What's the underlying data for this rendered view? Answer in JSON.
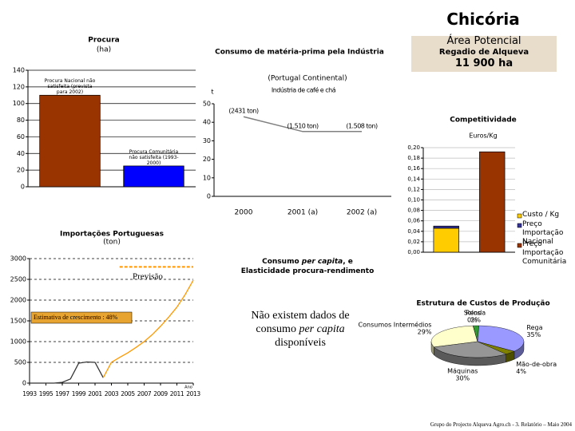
{
  "slide": {
    "title": "Chicória",
    "box": [
      "Área Potencial",
      "Regadio de Alqueva",
      "11 900 ha"
    ],
    "consumo_title": [
      "Consumo",
      "per capita",
      ", e",
      "Elasticidade procura-rendimento"
    ],
    "consumo_text": [
      "Não existem dados de",
      "consumo",
      "per capita",
      "disponíveis"
    ],
    "footer": "Grupo do Projecto Alqueva Agro.ch - 3. Relatório – Maio 2004"
  },
  "chart_data": [
    {
      "type": "bar",
      "title": "Procura",
      "subtitle": "(ha)",
      "categories": [
        "Procura Nacional não satisfeita (prevista para 2002)",
        "Procura Comunitária não satisfeita (1993-2000)"
      ],
      "values": [
        110,
        25
      ],
      "colors": [
        "#993300",
        "#0000ff"
      ],
      "ylim": [
        0,
        140
      ],
      "yticks": [
        0,
        20,
        40,
        60,
        80,
        100,
        120,
        140
      ],
      "grid": true
    },
    {
      "type": "line",
      "title": "Consumo de matéria-prima pela Indústria",
      "subtitle": "(Portugal Continental)",
      "series_label": "Indústria de café e chá",
      "ylabel": "t",
      "categories": [
        "2000",
        "2001 (a)",
        "2002 (a)"
      ],
      "values": [
        43,
        35,
        35
      ],
      "color": "#808080",
      "annotations": [
        "(2431 ton)",
        "(1.510 ton)",
        "(1.508 ton)"
      ],
      "ylim": [
        0,
        50
      ],
      "yticks": [
        0,
        10,
        20,
        30,
        40,
        50
      ],
      "grid": false
    },
    {
      "type": "bar",
      "stacked": true,
      "title": "Competitividade",
      "ylabel": "Euros/Kg",
      "categories": [
        null,
        null
      ],
      "series": [
        {
          "name": "Custo / Kg",
          "color": "#ffcc00",
          "values": [
            0.046,
            null
          ]
        },
        {
          "name": "Preço Importação Nacional",
          "color": "#333399",
          "values": [
            0.004,
            null
          ]
        },
        {
          "name": "Preço Importação Comunitária",
          "color": "#993300",
          "values": [
            null,
            0.192
          ]
        }
      ],
      "ylim": [
        0,
        0.2
      ],
      "yticks": [
        {
          "value": 0,
          "label": "0,00"
        },
        {
          "value": 0.02,
          "label": "0,02"
        },
        {
          "value": 0.04,
          "label": "0,04"
        },
        {
          "value": 0.06,
          "label": "0,06"
        },
        {
          "value": 0.08,
          "label": "0,08"
        },
        {
          "value": 0.1,
          "label": "0,10"
        },
        {
          "value": 0.12,
          "label": "0,12"
        },
        {
          "value": 0.14,
          "label": "0,14"
        },
        {
          "value": 0.16,
          "label": "0,16"
        },
        {
          "value": 0.18,
          "label": "0,18"
        },
        {
          "value": 0.2,
          "label": "0,20"
        }
      ],
      "grid": true,
      "legend": "right"
    },
    {
      "type": "line",
      "title": "Importações Portuguesas",
      "subtitle": "(ton)",
      "x": [
        1993,
        1994,
        1995,
        1996,
        1997,
        1998,
        1999,
        2000,
        2001,
        2002,
        2003,
        2004,
        2005,
        2006,
        2007,
        2008,
        2009,
        2010,
        2011,
        2012,
        2013
      ],
      "series": [
        {
          "color": "#333333",
          "values": [
            0,
            0,
            0,
            0,
            20,
            100,
            480,
            510,
            500,
            130,
            null,
            null,
            null,
            null,
            null,
            null,
            null,
            null,
            null,
            null,
            null
          ]
        },
        {
          "color": "#ff9900",
          "values": [
            null,
            null,
            null,
            null,
            null,
            null,
            null,
            null,
            null,
            130,
            500,
            620,
            730,
            860,
            1000,
            1170,
            1370,
            1590,
            1830,
            2130,
            2480
          ]
        }
      ],
      "reference_line": {
        "y": 2800,
        "x": [
          2004,
          2013
        ]
      },
      "annotations": [
        "Previsão",
        "Estimativa de crescimento : 48%",
        "Ano"
      ],
      "xlim": [
        1993,
        2013
      ],
      "xticks": [
        1993,
        1995,
        1997,
        1999,
        2001,
        2003,
        2005,
        2007,
        2009,
        2011,
        2013
      ],
      "ylim": [
        0,
        3000
      ],
      "yticks": [
        0,
        500,
        1000,
        1500,
        2000,
        2500,
        3000
      ],
      "grid": true
    },
    {
      "type": "pie",
      "title": "Estrutura de Custos de Produção",
      "categories": [
        "Consumos Intermédios",
        "Solos",
        "Renda",
        "Rega",
        "Mão-de-obra",
        "Máquinas"
      ],
      "values": [
        29,
        0,
        2,
        35,
        4,
        30
      ],
      "value_labels": [
        "29%",
        "0%",
        "2%",
        "35%",
        "4%",
        "30%"
      ],
      "colors": [
        "#ffffcc",
        "#00cc66",
        "#339933",
        "#9999ff",
        "#808000",
        "#969696"
      ]
    }
  ]
}
